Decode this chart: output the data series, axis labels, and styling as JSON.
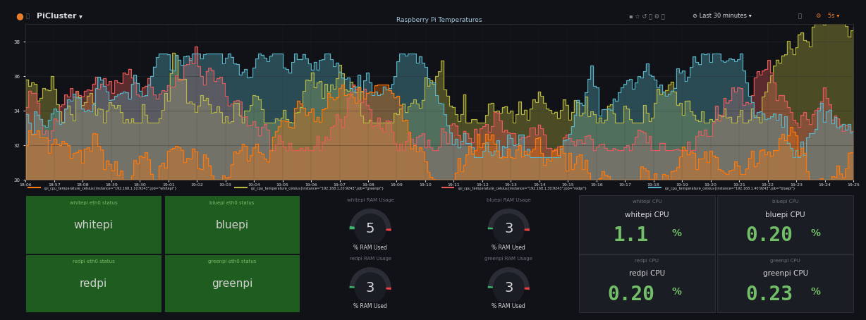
{
  "bg_color": "#111217",
  "panel_bg": "#161719",
  "panel_bg2": "#1a1d23",
  "border_color": "#2d2f38",
  "green_bg": "#1f5c1f",
  "green_text": "#73bf69",
  "white_text": "#d8d9da",
  "title_text": "#6e7079",
  "chart_bg": "#111217",
  "chart_title": "Raspberry Pi Temperatures",
  "top_bar_color": "#111217",
  "header_text": "PiCluster",
  "y_ticks": [
    30,
    32,
    34,
    36,
    38
  ],
  "time_labels": [
    "18:06",
    "18:57",
    "18:08",
    "18:39",
    "18:30",
    "19:01",
    "19:02",
    "19:03",
    "19:04",
    "19:05",
    "19:06",
    "19:07",
    "19:08",
    "19:09",
    "19:10",
    "19:11",
    "19:12",
    "19:13",
    "19:14",
    "19:15",
    "19:16",
    "19:17",
    "19:18",
    "19:19",
    "19:20",
    "19:21",
    "19:22",
    "19:23",
    "19:24",
    "19:25"
  ],
  "series": [
    {
      "label": "rpi_cpu_temperature_celsius{instance=\"192.168.1.10:9243\",job=\"whitepi\"}",
      "color": "#ff780a",
      "base": 32.0,
      "noise": 0.5
    },
    {
      "label": "rpi_cpu_temperature_celsius{instance=\"192.168.1.20:9243\",job=\"greenpi\"}",
      "color": "#b8b840",
      "base": 35.8,
      "noise": 0.6
    },
    {
      "label": "rpi_cpu_temperature_celsius{instance=\"192.168.1.30:9243\",job=\"redpi\"}",
      "color": "#e85a5a",
      "base": 34.2,
      "noise": 0.5
    },
    {
      "label": "rpi_cpu_temperature_celsius{instance=\"192.168.1.40:9243\",job=\"bluepi\"}",
      "color": "#5ab4c8",
      "base": 33.8,
      "noise": 0.5
    }
  ],
  "status_panels": [
    {
      "title": "whitepi eth0 status",
      "value": "whitepi",
      "row": 0,
      "col": 0
    },
    {
      "title": "bluepi eth0 status",
      "value": "bluepi",
      "row": 0,
      "col": 1
    },
    {
      "title": "redpi eth0 status",
      "value": "redpi",
      "row": 1,
      "col": 0
    },
    {
      "title": "greenpi eth0 status",
      "value": "greenpi",
      "row": 1,
      "col": 1
    }
  ],
  "gauge_panels": [
    {
      "title": "whitepi RAM Usage",
      "value": 5,
      "label": "% RAM Used",
      "row": 0,
      "col": 0
    },
    {
      "title": "bluepi RAM Usage",
      "value": 3,
      "label": "% RAM Used",
      "row": 0,
      "col": 1
    },
    {
      "title": "redpi RAM Usage",
      "value": 3,
      "label": "% RAM Used",
      "row": 1,
      "col": 0
    },
    {
      "title": "greenpi RAM Usage",
      "value": 3,
      "label": "% RAM Used",
      "row": 1,
      "col": 1
    }
  ],
  "cpu_panels": [
    {
      "title": "whitepi CPU",
      "label": "whitepi CPU",
      "value": "1.1",
      "unit": "%",
      "row": 0,
      "col": 0
    },
    {
      "title": "bluepi CPU",
      "label": "bluepi CPU",
      "value": "0.20",
      "unit": "%",
      "row": 0,
      "col": 1
    },
    {
      "title": "redpi CPU",
      "label": "redpi CPU",
      "value": "0.20",
      "unit": "%",
      "row": 1,
      "col": 0
    },
    {
      "title": "greenpi CPU",
      "label": "greenpi CPU",
      "value": "0.23",
      "unit": "%",
      "row": 1,
      "col": 1
    }
  ]
}
